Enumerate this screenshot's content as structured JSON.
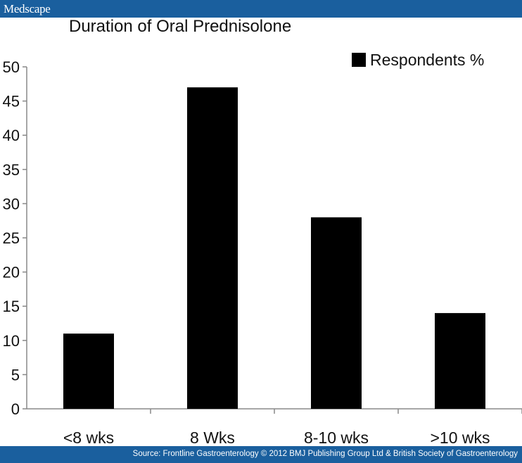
{
  "header": {
    "brand": "Medscape"
  },
  "footer": {
    "source": "Source: Frontline Gastroenterology © 2012 BMJ Publishing Group Ltd & British Society of Gastroenterology"
  },
  "colors": {
    "bar_color": "#000000",
    "banner": "#1a5f9e"
  },
  "chart_data": {
    "type": "bar",
    "title": "Duration of Oral Prednisolone",
    "categories": [
      "<8 wks",
      "8 Wks",
      "8-10 wks",
      ">10 wks"
    ],
    "series": [
      {
        "name": "Respondents %",
        "values": [
          11,
          47,
          28,
          14
        ]
      }
    ],
    "xlabel": "",
    "ylabel": "",
    "ylim": [
      0,
      50
    ],
    "yticks": [
      "0",
      "5",
      "10",
      "15",
      "20",
      "25",
      "30",
      "35",
      "40",
      "45",
      "50"
    ],
    "grid": false,
    "legend": "top-right"
  }
}
